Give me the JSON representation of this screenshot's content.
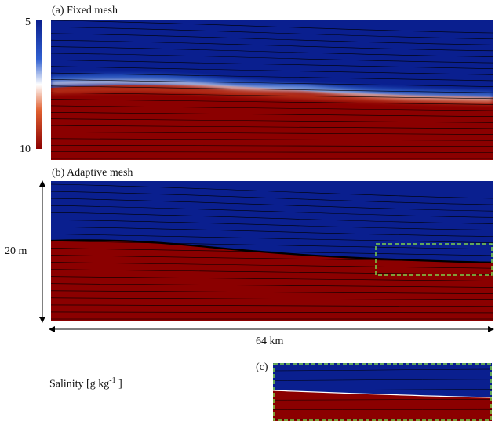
{
  "panels": {
    "a_label": "(a) Fixed mesh",
    "b_label": "(b) Adaptive mesh",
    "c_label": "(c)"
  },
  "colorbar": {
    "max_label": "5",
    "min_label": "10",
    "colors": [
      "#0a1f8f",
      "#2f5fd0",
      "#ffffff",
      "#e06030",
      "#8b0000"
    ]
  },
  "dimensions": {
    "depth_label": "20 m",
    "length_label": "64 km"
  },
  "legend": {
    "base": "Salinity [g  kg",
    "exponent": "-1",
    "close": " ]"
  },
  "colors": {
    "fresh": "#0a1f8f",
    "salt": "#8b0000",
    "inset_box": "#7fd34a"
  }
}
